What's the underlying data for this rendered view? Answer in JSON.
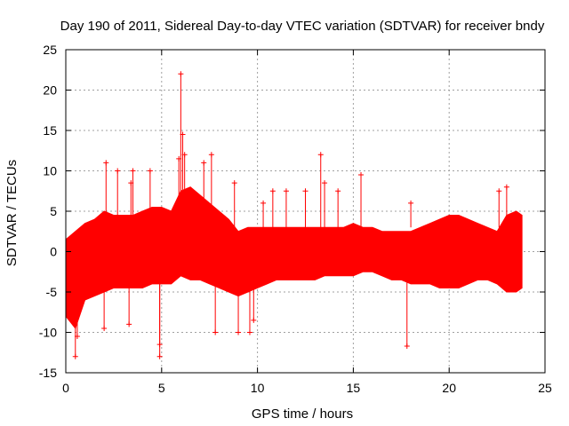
{
  "chart_data": {
    "type": "scatter",
    "title": "Day 190 of 2011, Sidereal Day-to-day VTEC variation (SDTVAR) for receiver bndy",
    "xlabel": "GPS time / hours",
    "ylabel": "SDTVAR / TECUs",
    "xlim": [
      0,
      25
    ],
    "ylim": [
      -15,
      25
    ],
    "x_ticks": [
      0,
      5,
      10,
      15,
      20,
      25
    ],
    "y_ticks": [
      -15,
      -10,
      -5,
      0,
      5,
      10,
      15,
      20,
      25
    ],
    "x_tick_labels": [
      "0",
      "5",
      "10",
      "15",
      "20",
      "25"
    ],
    "y_tick_labels": [
      "-15",
      "-10",
      "-5",
      "0",
      "5",
      "10",
      "15",
      "20",
      "25"
    ],
    "grid": true,
    "marker": "+",
    "series_color": "#ff0000",
    "dense_band": {
      "description": "continuous dense band of points from 0 to about 23.8 hours",
      "x": [
        0.0,
        0.5,
        1.0,
        1.5,
        2.0,
        2.5,
        3.0,
        3.5,
        4.0,
        4.5,
        5.0,
        5.5,
        6.0,
        6.5,
        7.0,
        7.5,
        8.0,
        8.5,
        9.0,
        9.5,
        10.0,
        10.5,
        11.0,
        11.5,
        12.0,
        12.5,
        13.0,
        13.5,
        14.0,
        14.5,
        15.0,
        15.5,
        16.0,
        16.5,
        17.0,
        17.5,
        18.0,
        18.5,
        19.0,
        19.5,
        20.0,
        20.5,
        21.0,
        21.5,
        22.0,
        22.5,
        23.0,
        23.5,
        23.8
      ],
      "upper": [
        1.5,
        2.5,
        3.5,
        4.0,
        5.0,
        4.5,
        4.5,
        4.5,
        5.0,
        5.5,
        5.5,
        5.0,
        7.5,
        8.0,
        7.0,
        6.0,
        5.0,
        4.0,
        2.5,
        3.0,
        3.0,
        3.0,
        3.0,
        3.0,
        3.0,
        3.0,
        3.0,
        3.0,
        3.0,
        3.0,
        3.5,
        3.0,
        3.0,
        2.5,
        2.5,
        2.5,
        2.5,
        3.0,
        3.5,
        4.0,
        4.5,
        4.5,
        4.0,
        3.5,
        3.0,
        2.5,
        4.5,
        5.0,
        4.5
      ],
      "lower": [
        -8.0,
        -9.5,
        -6.0,
        -5.5,
        -5.0,
        -4.5,
        -4.5,
        -4.5,
        -4.5,
        -4.0,
        -4.0,
        -4.0,
        -3.0,
        -3.5,
        -3.5,
        -4.0,
        -4.5,
        -5.0,
        -5.5,
        -5.0,
        -4.5,
        -4.0,
        -3.5,
        -3.5,
        -3.5,
        -3.5,
        -3.5,
        -3.0,
        -3.0,
        -3.0,
        -3.0,
        -2.5,
        -2.5,
        -3.0,
        -3.5,
        -3.5,
        -4.0,
        -4.0,
        -4.0,
        -4.5,
        -4.5,
        -4.5,
        -4.0,
        -3.5,
        -3.5,
        -4.0,
        -5.0,
        -5.0,
        -4.5
      ]
    },
    "outliers": [
      {
        "x": 0.5,
        "y": -13.0
      },
      {
        "x": 0.6,
        "y": -10.5
      },
      {
        "x": 2.1,
        "y": 11.0
      },
      {
        "x": 2.0,
        "y": -9.5
      },
      {
        "x": 2.7,
        "y": 10.0
      },
      {
        "x": 3.3,
        "y": -9.0
      },
      {
        "x": 3.4,
        "y": 8.5
      },
      {
        "x": 3.5,
        "y": 10.0
      },
      {
        "x": 4.4,
        "y": 10.0
      },
      {
        "x": 4.9,
        "y": -11.5
      },
      {
        "x": 4.9,
        "y": -13.0
      },
      {
        "x": 6.0,
        "y": 22.0
      },
      {
        "x": 6.1,
        "y": 14.5
      },
      {
        "x": 6.2,
        "y": 12.0
      },
      {
        "x": 5.9,
        "y": 11.5
      },
      {
        "x": 7.2,
        "y": 11.0
      },
      {
        "x": 7.6,
        "y": 12.0
      },
      {
        "x": 7.8,
        "y": -10.0
      },
      {
        "x": 8.8,
        "y": 8.5
      },
      {
        "x": 9.0,
        "y": -10.0
      },
      {
        "x": 9.6,
        "y": -10.0
      },
      {
        "x": 9.8,
        "y": -8.5
      },
      {
        "x": 10.3,
        "y": 6.0
      },
      {
        "x": 10.8,
        "y": 7.5
      },
      {
        "x": 11.5,
        "y": 7.5
      },
      {
        "x": 12.5,
        "y": 7.5
      },
      {
        "x": 13.3,
        "y": 12.0
      },
      {
        "x": 13.5,
        "y": 8.5
      },
      {
        "x": 14.2,
        "y": 7.5
      },
      {
        "x": 15.4,
        "y": 9.5
      },
      {
        "x": 17.8,
        "y": -11.7
      },
      {
        "x": 18.0,
        "y": 6.0
      },
      {
        "x": 22.6,
        "y": 7.5
      },
      {
        "x": 23.0,
        "y": 8.0
      }
    ]
  }
}
